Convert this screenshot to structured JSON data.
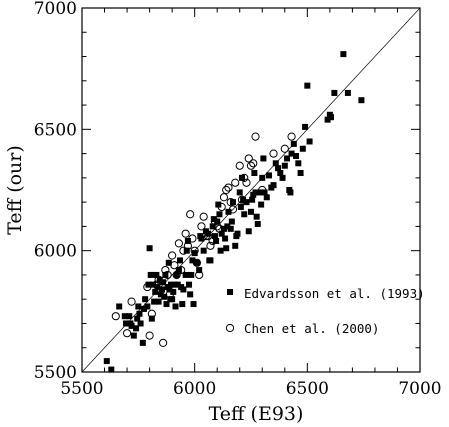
{
  "chart_data": {
    "type": "scatter",
    "xlabel": "Teff (E93)",
    "ylabel": "Teff (our)",
    "xlim": [
      5500,
      7000
    ],
    "ylim": [
      5500,
      7000
    ],
    "x_ticks": [
      5500,
      6000,
      6500,
      7000
    ],
    "y_ticks": [
      5500,
      6000,
      6500,
      7000
    ],
    "x_tick_labels": [
      "5500",
      "6000",
      "6500",
      "7000"
    ],
    "y_tick_labels": [
      "5500",
      "6000",
      "6500",
      "7000"
    ],
    "reference_line": {
      "type": "one-to-one",
      "from": [
        5500,
        5500
      ],
      "to": [
        7000,
        7000
      ]
    },
    "legend_position": "lower-right",
    "series": [
      {
        "name": "Edvardsson et al. (1993)",
        "marker": "filled-square",
        "color": "#000000",
        "points": [
          [
            5610,
            5545
          ],
          [
            5630,
            5510
          ],
          [
            5665,
            5770
          ],
          [
            5690,
            5730
          ],
          [
            5695,
            5700
          ],
          [
            5710,
            5730
          ],
          [
            5715,
            5700
          ],
          [
            5720,
            5690
          ],
          [
            5730,
            5650
          ],
          [
            5740,
            5680
          ],
          [
            5745,
            5720
          ],
          [
            5750,
            5770
          ],
          [
            5755,
            5740
          ],
          [
            5760,
            5700
          ],
          [
            5770,
            5620
          ],
          [
            5775,
            5760
          ],
          [
            5780,
            5800
          ],
          [
            5790,
            5770
          ],
          [
            5795,
            5860
          ],
          [
            5800,
            6010
          ],
          [
            5805,
            5900
          ],
          [
            5810,
            5720
          ],
          [
            5815,
            5860
          ],
          [
            5820,
            5790
          ],
          [
            5825,
            5830
          ],
          [
            5830,
            5900
          ],
          [
            5835,
            5850
          ],
          [
            5840,
            5790
          ],
          [
            5845,
            5880
          ],
          [
            5850,
            5820
          ],
          [
            5855,
            5840
          ],
          [
            5860,
            5870
          ],
          [
            5865,
            5810
          ],
          [
            5870,
            5900
          ],
          [
            5875,
            5780
          ],
          [
            5880,
            5850
          ],
          [
            5885,
            5950
          ],
          [
            5888,
            5840
          ],
          [
            5892,
            5800
          ],
          [
            5895,
            5860
          ],
          [
            5900,
            5800
          ],
          [
            5905,
            5830
          ],
          [
            5910,
            5860
          ],
          [
            5915,
            5770
          ],
          [
            5920,
            5900
          ],
          [
            5925,
            5860
          ],
          [
            5930,
            5920
          ],
          [
            5935,
            5960
          ],
          [
            5940,
            5850
          ],
          [
            5945,
            5780
          ],
          [
            5950,
            5840
          ],
          [
            5960,
            5900
          ],
          [
            5965,
            6000
          ],
          [
            5970,
            6040
          ],
          [
            5975,
            5860
          ],
          [
            5980,
            5820
          ],
          [
            5985,
            5900
          ],
          [
            5990,
            5960
          ],
          [
            5995,
            5780
          ],
          [
            6000,
            5990
          ],
          [
            6010,
            5950
          ],
          [
            6020,
            5920
          ],
          [
            6025,
            6060
          ],
          [
            6030,
            6050
          ],
          [
            6040,
            6000
          ],
          [
            6050,
            6080
          ],
          [
            6060,
            6070
          ],
          [
            6065,
            5960
          ],
          [
            6070,
            5960
          ],
          [
            6080,
            6100
          ],
          [
            6085,
            6130
          ],
          [
            6090,
            6060
          ],
          [
            6095,
            6040
          ],
          [
            6100,
            6120
          ],
          [
            6105,
            6190
          ],
          [
            6110,
            6150
          ],
          [
            6115,
            6000
          ],
          [
            6120,
            6070
          ],
          [
            6130,
            6090
          ],
          [
            6135,
            6050
          ],
          [
            6140,
            6010
          ],
          [
            6145,
            6100
          ],
          [
            6150,
            6160
          ],
          [
            6160,
            6090
          ],
          [
            6165,
            6120
          ],
          [
            6170,
            6200
          ],
          [
            6180,
            6020
          ],
          [
            6185,
            6060
          ],
          [
            6190,
            6070
          ],
          [
            6200,
            6240
          ],
          [
            6205,
            6180
          ],
          [
            6210,
            6300
          ],
          [
            6215,
            6210
          ],
          [
            6220,
            6150
          ],
          [
            6230,
            6200
          ],
          [
            6240,
            6080
          ],
          [
            6250,
            6160
          ],
          [
            6255,
            6210
          ],
          [
            6260,
            6230
          ],
          [
            6265,
            6320
          ],
          [
            6270,
            6240
          ],
          [
            6275,
            6140
          ],
          [
            6280,
            6110
          ],
          [
            6290,
            6240
          ],
          [
            6295,
            6190
          ],
          [
            6300,
            6300
          ],
          [
            6305,
            6380
          ],
          [
            6310,
            6240
          ],
          [
            6320,
            6220
          ],
          [
            6330,
            6310
          ],
          [
            6340,
            6260
          ],
          [
            6350,
            6270
          ],
          [
            6360,
            6360
          ],
          [
            6370,
            6340
          ],
          [
            6380,
            6320
          ],
          [
            6390,
            6300
          ],
          [
            6400,
            6350
          ],
          [
            6410,
            6380
          ],
          [
            6420,
            6250
          ],
          [
            6425,
            6240
          ],
          [
            6430,
            6400
          ],
          [
            6440,
            6440
          ],
          [
            6450,
            6390
          ],
          [
            6460,
            6360
          ],
          [
            6470,
            6320
          ],
          [
            6480,
            6420
          ],
          [
            6490,
            6510
          ],
          [
            6500,
            6680
          ],
          [
            6510,
            6450
          ],
          [
            6590,
            6540
          ],
          [
            6600,
            6560
          ],
          [
            6605,
            6550
          ],
          [
            6620,
            6650
          ],
          [
            6660,
            6810
          ],
          [
            6680,
            6650
          ],
          [
            6740,
            6620
          ]
        ]
      },
      {
        "name": "Chen et al. (2000)",
        "marker": "open-circle",
        "color": "#000000",
        "points": [
          [
            5650,
            5730
          ],
          [
            5700,
            5660
          ],
          [
            5720,
            5790
          ],
          [
            5790,
            5850
          ],
          [
            5800,
            5650
          ],
          [
            5810,
            5740
          ],
          [
            5830,
            5860
          ],
          [
            5840,
            5880
          ],
          [
            5860,
            5620
          ],
          [
            5870,
            5920
          ],
          [
            5880,
            5900
          ],
          [
            5890,
            5820
          ],
          [
            5900,
            5980
          ],
          [
            5910,
            5940
          ],
          [
            5920,
            5900
          ],
          [
            5930,
            6030
          ],
          [
            5940,
            5920
          ],
          [
            5950,
            6000
          ],
          [
            5960,
            6070
          ],
          [
            5970,
            6020
          ],
          [
            5980,
            6150
          ],
          [
            5990,
            6050
          ],
          [
            6000,
            6000
          ],
          [
            6010,
            5950
          ],
          [
            6020,
            5900
          ],
          [
            6030,
            6100
          ],
          [
            6040,
            6140
          ],
          [
            6050,
            6060
          ],
          [
            6060,
            6060
          ],
          [
            6070,
            6020
          ],
          [
            6080,
            6040
          ],
          [
            6090,
            6120
          ],
          [
            6100,
            6100
          ],
          [
            6110,
            6090
          ],
          [
            6120,
            6180
          ],
          [
            6130,
            6220
          ],
          [
            6140,
            6250
          ],
          [
            6150,
            6260
          ],
          [
            6160,
            6200
          ],
          [
            6170,
            6170
          ],
          [
            6180,
            6280
          ],
          [
            6200,
            6350
          ],
          [
            6210,
            6210
          ],
          [
            6220,
            6300
          ],
          [
            6230,
            6280
          ],
          [
            6240,
            6380
          ],
          [
            6250,
            6350
          ],
          [
            6260,
            6360
          ],
          [
            6270,
            6470
          ],
          [
            6300,
            6250
          ],
          [
            6350,
            6400
          ],
          [
            6400,
            6420
          ],
          [
            6430,
            6470
          ]
        ]
      }
    ]
  }
}
